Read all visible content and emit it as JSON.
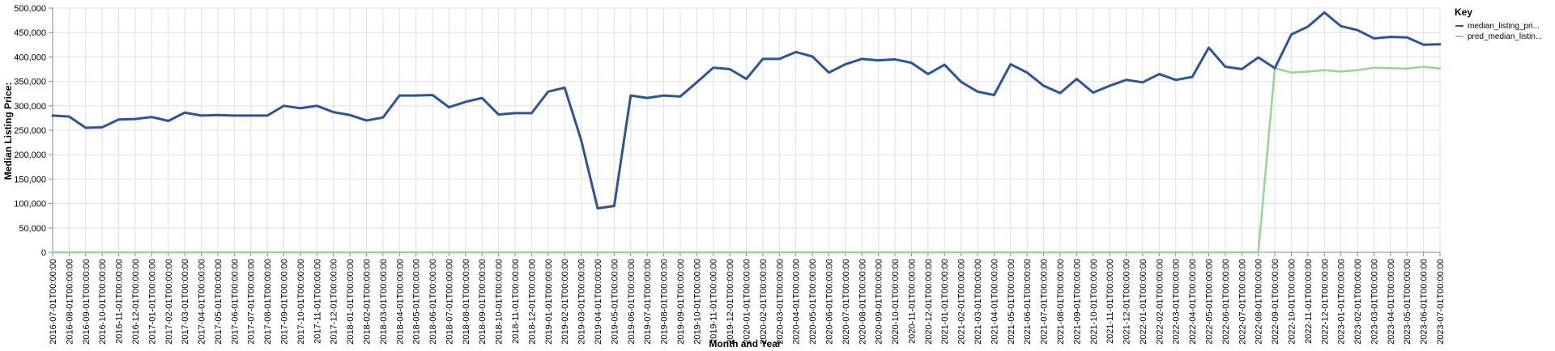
{
  "chart_data": {
    "type": "line",
    "xlabel": "Month and Year",
    "ylabel": "Median Listing Price:",
    "ylim": [
      0,
      500000
    ],
    "y_ticks": [
      "0",
      "50,000",
      "100,000",
      "150,000",
      "200,000",
      "250,000",
      "300,000",
      "350,000",
      "400,000",
      "450,000",
      "500,000"
    ],
    "grid": true,
    "legend": {
      "title": "Key",
      "placement": "top-right",
      "labels": [
        "median_listing_pri...",
        "pred_median_listin..."
      ]
    },
    "colors": {
      "actual": "#2c5599",
      "pred": "#98d494",
      "grid": "#e0e0e0",
      "axis": "#888888"
    },
    "x": [
      "2016-07-01T00:00:00",
      "2016-08-01T00:00:00",
      "2016-09-01T00:00:00",
      "2016-10-01T00:00:00",
      "2016-11-01T00:00:00",
      "2016-12-01T00:00:00",
      "2017-01-01T00:00:00",
      "2017-02-01T00:00:00",
      "2017-03-01T00:00:00",
      "2017-04-01T00:00:00",
      "2017-05-01T00:00:00",
      "2017-06-01T00:00:00",
      "2017-07-01T00:00:00",
      "2017-08-01T00:00:00",
      "2017-09-01T00:00:00",
      "2017-10-01T00:00:00",
      "2017-11-01T00:00:00",
      "2017-12-01T00:00:00",
      "2018-01-01T00:00:00",
      "2018-02-01T00:00:00",
      "2018-03-01T00:00:00",
      "2018-04-01T00:00:00",
      "2018-05-01T00:00:00",
      "2018-06-01T00:00:00",
      "2018-07-01T00:00:00",
      "2018-08-01T00:00:00",
      "2018-09-01T00:00:00",
      "2018-10-01T00:00:00",
      "2018-11-01T00:00:00",
      "2018-12-01T00:00:00",
      "2019-01-01T00:00:00",
      "2019-02-01T00:00:00",
      "2019-03-01T00:00:00",
      "2019-04-01T00:00:00",
      "2019-05-01T00:00:00",
      "2019-06-01T00:00:00",
      "2019-07-01T00:00:00",
      "2019-08-01T00:00:00",
      "2019-09-01T00:00:00",
      "2019-10-01T00:00:00",
      "2019-11-01T00:00:00",
      "2019-12-01T00:00:00",
      "2020-01-01T00:00:00",
      "2020-02-01T00:00:00",
      "2020-03-01T00:00:00",
      "2020-04-01T00:00:00",
      "2020-05-01T00:00:00",
      "2020-06-01T00:00:00",
      "2020-07-01T00:00:00",
      "2020-08-01T00:00:00",
      "2020-09-01T00:00:00",
      "2020-10-01T00:00:00",
      "2020-11-01T00:00:00",
      "2020-12-01T00:00:00",
      "2021-01-01T00:00:00",
      "2021-02-01T00:00:00",
      "2021-03-01T00:00:00",
      "2021-04-01T00:00:00",
      "2021-05-01T00:00:00",
      "2021-06-01T00:00:00",
      "2021-07-01T00:00:00",
      "2021-08-01T00:00:00",
      "2021-09-01T00:00:00",
      "2021-10-01T00:00:00",
      "2021-11-01T00:00:00",
      "2021-12-01T00:00:00",
      "2022-01-01T00:00:00",
      "2022-02-01T00:00:00",
      "2022-03-01T00:00:00",
      "2022-04-01T00:00:00",
      "2022-05-01T00:00:00",
      "2022-06-01T00:00:00",
      "2022-07-01T00:00:00",
      "2022-08-01T00:00:00",
      "2022-09-01T00:00:00",
      "2022-10-01T00:00:00",
      "2022-11-01T00:00:00",
      "2022-12-01T00:00:00",
      "2023-01-01T00:00:00",
      "2023-02-01T00:00:00",
      "2023-03-01T00:00:00",
      "2023-04-01T00:00:00",
      "2023-05-01T00:00:00",
      "2023-06-01T00:00:00",
      "2023-07-01T00:00:00"
    ],
    "series": [
      {
        "name": "median_listing_pri...",
        "values": [
          280000,
          278000,
          255000,
          256000,
          272000,
          273000,
          277000,
          269000,
          286000,
          280000,
          281000,
          280000,
          280000,
          280000,
          300000,
          295000,
          300000,
          287000,
          281000,
          270000,
          276000,
          321000,
          321000,
          322000,
          297000,
          308000,
          316000,
          282000,
          285000,
          285000,
          329000,
          337000,
          230000,
          90000,
          95000,
          321000,
          316000,
          321000,
          319000,
          348000,
          378000,
          375000,
          355000,
          396000,
          396000,
          410000,
          401000,
          368000,
          385000,
          396000,
          393000,
          395000,
          388000,
          365000,
          384000,
          349000,
          329000,
          322000,
          385000,
          368000,
          341000,
          326000,
          355000,
          327000,
          341000,
          353000,
          348000,
          365000,
          353000,
          359000,
          419000,
          380000,
          375000,
          399000,
          377000,
          446000,
          462000,
          491000,
          463000,
          455000,
          438000,
          441000,
          440000,
          425000,
          426000
        ]
      },
      {
        "name": "pred_median_listin...",
        "values": [
          0,
          0,
          0,
          0,
          0,
          0,
          0,
          0,
          0,
          0,
          0,
          0,
          0,
          0,
          0,
          0,
          0,
          0,
          0,
          0,
          0,
          0,
          0,
          0,
          0,
          0,
          0,
          0,
          0,
          0,
          0,
          0,
          0,
          0,
          0,
          0,
          0,
          0,
          0,
          0,
          0,
          0,
          0,
          0,
          0,
          0,
          0,
          0,
          0,
          0,
          0,
          0,
          0,
          0,
          0,
          0,
          0,
          0,
          0,
          0,
          0,
          0,
          0,
          0,
          0,
          0,
          0,
          0,
          0,
          0,
          0,
          0,
          0,
          0,
          377000,
          368000,
          370000,
          373000,
          370000,
          373000,
          378000,
          377000,
          376000,
          380000,
          376000
        ]
      }
    ]
  }
}
